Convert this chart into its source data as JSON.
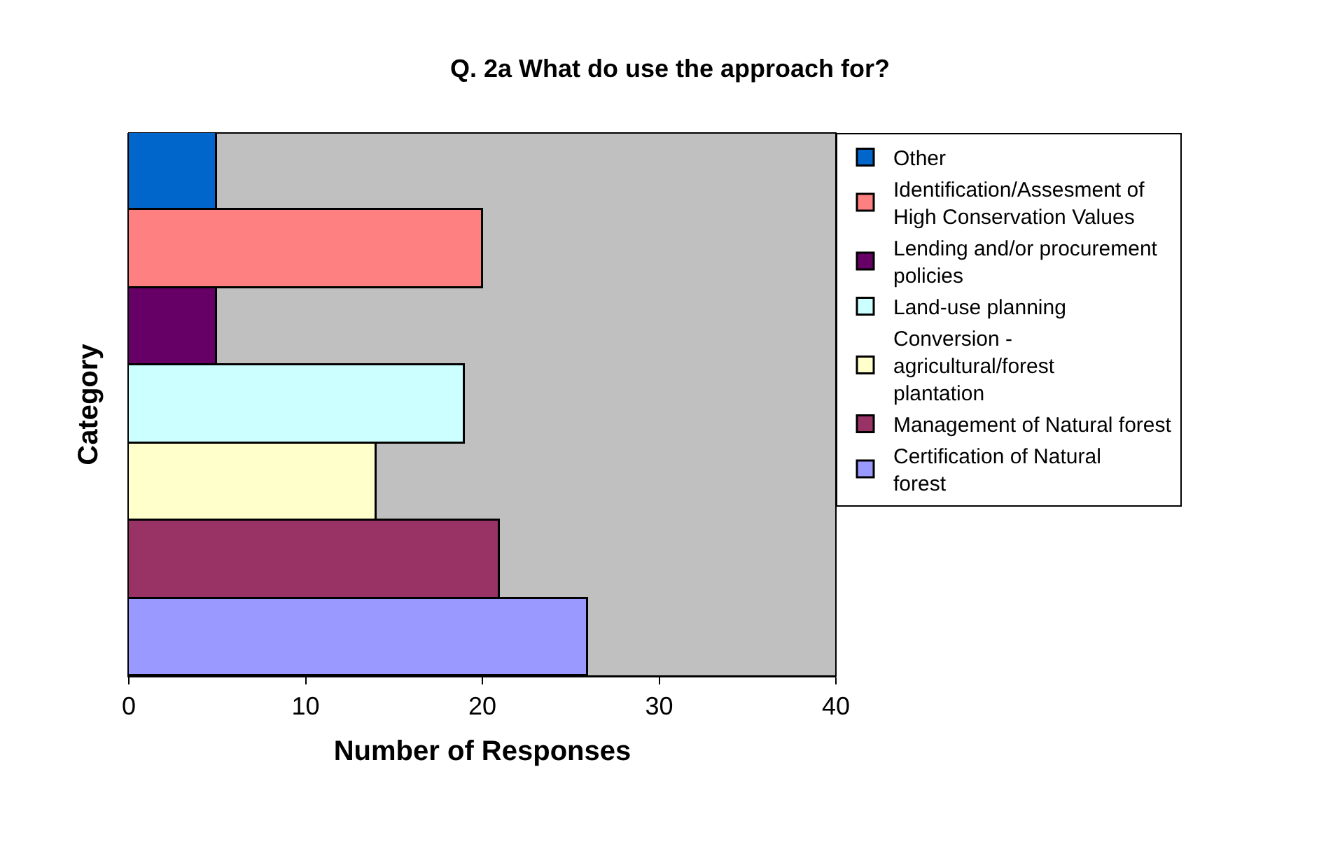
{
  "chart_data": {
    "type": "bar",
    "orientation": "horizontal",
    "title": "Q. 2a What do use the approach for?",
    "xlabel": "Number of Responses",
    "ylabel": "Category",
    "categories": [
      null
    ],
    "series": [
      {
        "name": "Other",
        "color": "#0066cc",
        "values": [
          5
        ]
      },
      {
        "name": "Identification/Assesment of High Conservation Values",
        "color": "#ff8080",
        "values": [
          20
        ]
      },
      {
        "name": "Lending and/or procurement policies",
        "color": "#660066",
        "values": [
          5
        ]
      },
      {
        "name": "Land-use planning",
        "color": "#ccffff",
        "values": [
          19
        ]
      },
      {
        "name": "Conversion - agricultural/forest plantation",
        "color": "#ffffcc",
        "values": [
          14
        ]
      },
      {
        "name": "Management of Natural forest",
        "color": "#993366",
        "values": [
          21
        ]
      },
      {
        "name": "Certification of Natural forest",
        "color": "#9999ff",
        "values": [
          26
        ]
      }
    ],
    "xlim": [
      0,
      40
    ],
    "xticks": [
      0,
      10,
      20,
      30,
      40
    ],
    "grid": false,
    "legend": "right",
    "tick_labels": "x"
  }
}
